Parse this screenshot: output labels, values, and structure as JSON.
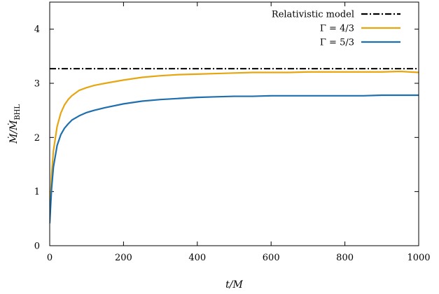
{
  "chart_data": {
    "type": "line",
    "xlabel": "t/M",
    "ylabel": "Ṁ/Ṁ_BHL",
    "xlim": [
      0,
      1000
    ],
    "ylim": [
      0,
      4.5
    ],
    "x_ticks": [
      "0",
      "200",
      "400",
      "600",
      "800",
      "1000"
    ],
    "y_ticks": [
      "0",
      "1",
      "2",
      "3",
      "4"
    ],
    "x_tick_values": [
      0,
      200,
      400,
      600,
      800,
      1000
    ],
    "y_tick_values": [
      0,
      1,
      2,
      3,
      4
    ],
    "legend_placement": "top-right",
    "reference_line": {
      "name": "Relativistic model",
      "y": 3.27,
      "color": "#000000",
      "style": "dash-dot"
    },
    "series": [
      {
        "name": "Γ = 4/3",
        "color": "#E6A610",
        "x": [
          0,
          5,
          10,
          20,
          30,
          40,
          50,
          60,
          80,
          100,
          120,
          150,
          200,
          250,
          300,
          350,
          400,
          450,
          500,
          550,
          600,
          650,
          700,
          750,
          800,
          850,
          900,
          950,
          1000
        ],
        "values": [
          0.45,
          1.3,
          1.75,
          2.2,
          2.45,
          2.6,
          2.7,
          2.77,
          2.87,
          2.92,
          2.96,
          3.0,
          3.06,
          3.11,
          3.14,
          3.16,
          3.17,
          3.18,
          3.19,
          3.2,
          3.2,
          3.2,
          3.21,
          3.21,
          3.21,
          3.21,
          3.21,
          3.22,
          3.2
        ]
      },
      {
        "name": "Γ = 5/3",
        "color": "#1F6FAE",
        "x": [
          0,
          5,
          10,
          20,
          30,
          40,
          50,
          60,
          80,
          100,
          120,
          150,
          200,
          250,
          300,
          350,
          400,
          450,
          500,
          550,
          600,
          650,
          700,
          750,
          800,
          850,
          900,
          950,
          1000
        ],
        "values": [
          0.42,
          1.05,
          1.45,
          1.85,
          2.05,
          2.17,
          2.25,
          2.32,
          2.4,
          2.46,
          2.5,
          2.55,
          2.62,
          2.67,
          2.7,
          2.72,
          2.74,
          2.75,
          2.76,
          2.76,
          2.77,
          2.77,
          2.77,
          2.77,
          2.77,
          2.77,
          2.78,
          2.78,
          2.78
        ]
      }
    ]
  }
}
